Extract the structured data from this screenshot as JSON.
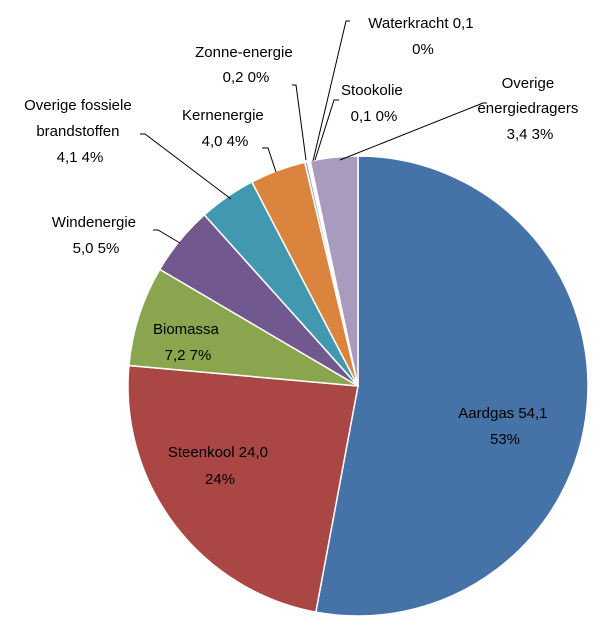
{
  "chart_data": {
    "type": "pie",
    "title": "",
    "slices": [
      {
        "name": "Aardgas",
        "value": 54.1,
        "value_label": "54,1",
        "percent_label": "53%",
        "color": "#4572A7"
      },
      {
        "name": "Steenkool",
        "value": 24.0,
        "value_label": "24,0",
        "percent_label": "24%",
        "color": "#AA4643"
      },
      {
        "name": "Biomassa",
        "value": 7.2,
        "value_label": "7,2",
        "percent_label": "7%",
        "color": "#89A54E"
      },
      {
        "name": "Windenergie",
        "value": 5.0,
        "value_label": "5,0",
        "percent_label": "5%",
        "color": "#71588F"
      },
      {
        "name": "Overige fossiele brandstoffen",
        "value": 4.1,
        "value_label": "4,1",
        "percent_label": "4%",
        "color": "#4198AF"
      },
      {
        "name": "Kernenergie",
        "value": 4.0,
        "value_label": "4,0",
        "percent_label": "4%",
        "color": "#DB843D"
      },
      {
        "name": "Zonne-energie",
        "value": 0.2,
        "value_label": "0,2",
        "percent_label": "0%",
        "color": "#93A9CF"
      },
      {
        "name": "Waterkracht",
        "value": 0.1,
        "value_label": "0,1",
        "percent_label": "0%",
        "color": "#D19392"
      },
      {
        "name": "Stookolie",
        "value": 0.1,
        "value_label": "0,1",
        "percent_label": "0%",
        "color": "#B9CD96"
      },
      {
        "name": "Overige energiedragers",
        "value": 3.4,
        "value_label": "3,4",
        "percent_label": "3%",
        "color": "#A99BBD"
      }
    ],
    "start": "12 o'clock",
    "direction": "clockwise"
  },
  "labels": {
    "aardgas": {
      "line1": "Aardgas  54,1",
      "line2": "53%"
    },
    "steenkool": {
      "line1": "Steenkool  24,0",
      "line2": "24%"
    },
    "biomassa": {
      "line1": "Biomassa",
      "line2": "7,2  7%"
    },
    "windenergie": {
      "line1": "Windenergie",
      "line2": "5,0  5%"
    },
    "overige_fossiele": {
      "line1": "Overige fossiele",
      "line2": "brandstoffen",
      "line3": "4,1  4%"
    },
    "kernenergie": {
      "line1": "Kernenergie",
      "line2": "4,0  4%"
    },
    "zonne": {
      "line1": "Zonne-energie",
      "line2": "0,2  0%"
    },
    "waterkracht": {
      "line1": "Waterkracht  0,1",
      "line2": "0%"
    },
    "stookolie": {
      "line1": "Stookolie",
      "line2": "0,1  0%"
    },
    "overige_energie": {
      "line1": "Overige",
      "line2": "energiedragers",
      "line3": "3,4  3%"
    }
  }
}
